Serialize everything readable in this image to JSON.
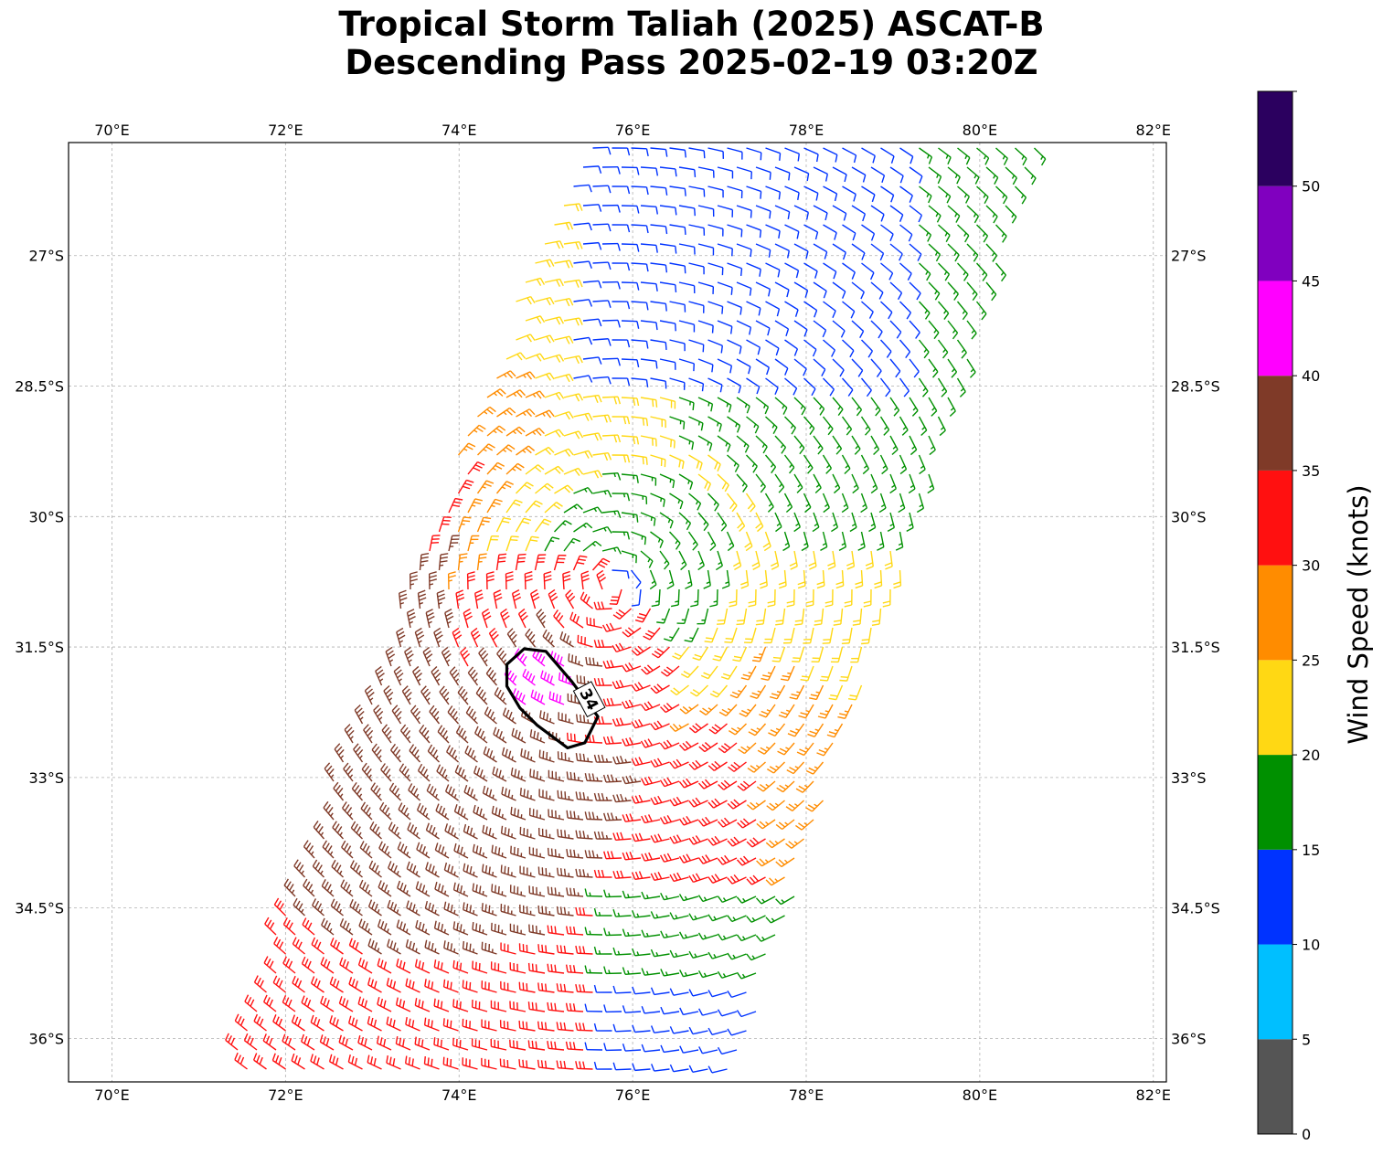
{
  "title": {
    "line1": "Tropical Storm Taliah (2025) ASCAT-B",
    "line2": "Descending Pass 2025-02-19 03:20Z"
  },
  "map": {
    "lon_range": [
      69.5,
      82.15
    ],
    "lat_range": [
      -36.5,
      -25.7
    ],
    "lon_ticks": [
      {
        "value": 70,
        "label": "70°E"
      },
      {
        "value": 72,
        "label": "72°E"
      },
      {
        "value": 74,
        "label": "74°E"
      },
      {
        "value": 76,
        "label": "76°E"
      },
      {
        "value": 78,
        "label": "78°E"
      },
      {
        "value": 80,
        "label": "80°E"
      },
      {
        "value": 82,
        "label": "82°E"
      }
    ],
    "lat_ticks": [
      {
        "value": -27,
        "label": "27°S"
      },
      {
        "value": -28.5,
        "label": "28.5°S"
      },
      {
        "value": -30,
        "label": "30°S"
      },
      {
        "value": -31.5,
        "label": "31.5°S"
      },
      {
        "value": -33,
        "label": "33°S"
      },
      {
        "value": -34.5,
        "label": "34.5°S"
      },
      {
        "value": -36,
        "label": "36°S"
      }
    ],
    "gridlines": true,
    "storm_center": {
      "lon": 75.75,
      "lat": -30.8
    },
    "contour": {
      "label": "34",
      "path": [
        [
          74.75,
          -31.52
        ],
        [
          75.0,
          -31.55
        ],
        [
          75.3,
          -31.9
        ],
        [
          75.6,
          -32.3
        ],
        [
          75.45,
          -32.6
        ],
        [
          75.25,
          -32.66
        ],
        [
          74.9,
          -32.4
        ],
        [
          74.7,
          -32.2
        ],
        [
          74.55,
          -31.95
        ],
        [
          74.55,
          -31.7
        ],
        [
          74.75,
          -31.52
        ]
      ]
    }
  },
  "colorbar": {
    "label": "Wind Speed (knots)",
    "bounds": [
      0,
      5,
      10,
      15,
      20,
      25,
      30,
      35,
      40,
      45,
      50,
      55
    ],
    "tick_labels": [
      "0",
      "5",
      "10",
      "15",
      "20",
      "25",
      "30",
      "35",
      "40",
      "45",
      "50"
    ],
    "colors": [
      "#555555",
      "#00bfff",
      "#0033ff",
      "#009000",
      "#ffd814",
      "#ff8c00",
      "#ff1010",
      "#7f3a28",
      "#ff00ff",
      "#8000bf",
      "#2b005f"
    ]
  }
}
